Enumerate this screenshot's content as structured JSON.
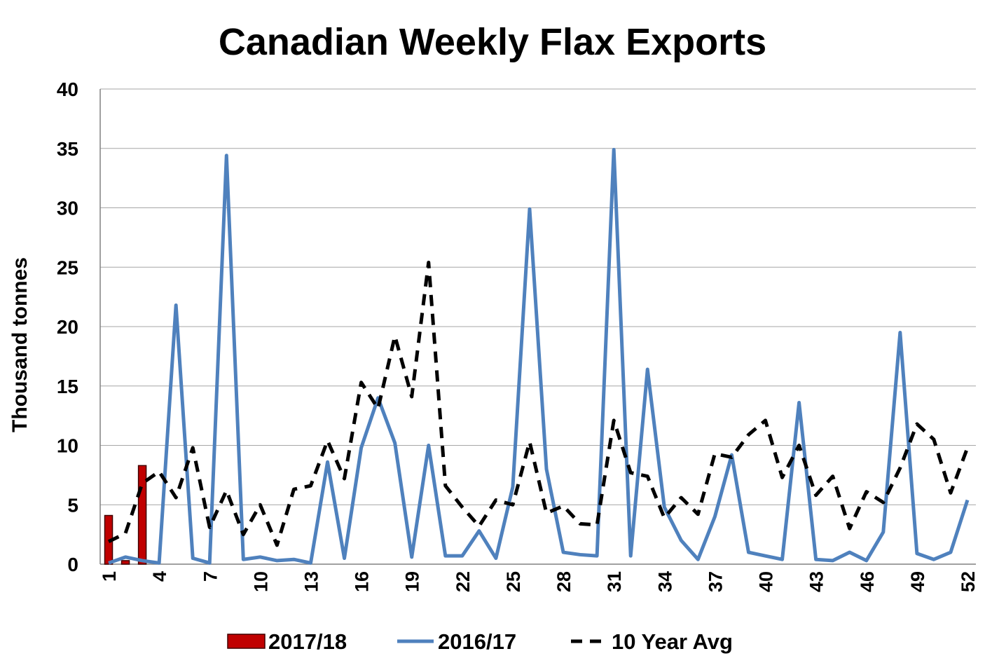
{
  "chart_data": {
    "type": "line",
    "title": "Canadian Weekly Flax Exports",
    "y_label": "Thousand tonnes",
    "categories": [
      "1",
      null,
      null,
      "4",
      null,
      null,
      "7",
      null,
      null,
      "10",
      null,
      null,
      "13",
      null,
      null,
      "16",
      null,
      null,
      "19",
      null,
      null,
      "22",
      null,
      null,
      "25",
      null,
      null,
      "28",
      null,
      null,
      "31",
      null,
      null,
      "34",
      null,
      null,
      "37",
      null,
      null,
      "40",
      null,
      null,
      "43",
      null,
      null,
      "46",
      null,
      null,
      "49",
      null,
      null,
      "52"
    ],
    "series": [
      {
        "name": "2017/18",
        "type": "bar",
        "color": "#c00000",
        "values": [
          4.1,
          0.3,
          8.3,
          null,
          null,
          null,
          null,
          null,
          null,
          null,
          null,
          null,
          null,
          null,
          null,
          null,
          null,
          null,
          null,
          null,
          null,
          null,
          null,
          null,
          null,
          null,
          null,
          null,
          null,
          null,
          null,
          null,
          null,
          null,
          null,
          null,
          null,
          null,
          null,
          null,
          null,
          null,
          null,
          null,
          null,
          null,
          null,
          null,
          null,
          null,
          null,
          null
        ]
      },
      {
        "name": "2016/17",
        "type": "line",
        "color": "#4f81bd",
        "values": [
          0.1,
          0.6,
          0.3,
          0.1,
          21.8,
          0.5,
          0.1,
          34.4,
          0.4,
          0.6,
          0.3,
          0.4,
          0.1,
          8.6,
          0.5,
          9.8,
          14.0,
          10.2,
          0.6,
          10.0,
          0.7,
          0.7,
          2.8,
          0.5,
          6.5,
          29.9,
          8.0,
          1.0,
          0.8,
          0.7,
          34.9,
          0.7,
          16.4,
          4.8,
          2.0,
          0.4,
          4.0,
          9.2,
          1.0,
          0.7,
          0.4,
          13.6,
          0.4,
          0.3,
          1.0,
          0.3,
          2.7,
          19.5,
          0.9,
          0.4,
          1.0,
          5.4
        ]
      },
      {
        "name": "10 Year Avg",
        "type": "dashed",
        "color": "#000000",
        "values": [
          1.9,
          2.6,
          6.8,
          7.8,
          5.6,
          9.8,
          3.1,
          6.2,
          2.5,
          5.0,
          1.6,
          6.3,
          6.6,
          10.4,
          7.2,
          15.3,
          13.1,
          19.2,
          14.1,
          25.4,
          6.6,
          4.8,
          3.2,
          5.4,
          5.0,
          10.3,
          4.3,
          4.9,
          3.4,
          3.3,
          12.1,
          7.7,
          7.4,
          3.9,
          5.6,
          4.2,
          9.3,
          9.0,
          10.9,
          12.1,
          7.3,
          10.0,
          5.8,
          7.4,
          3.0,
          6.1,
          5.2,
          8.1,
          11.8,
          10.5,
          6.0,
          9.8
        ]
      }
    ],
    "ylim": [
      0,
      40
    ],
    "yticks": [
      0,
      5,
      10,
      15,
      20,
      25,
      30,
      35,
      40
    ],
    "grid": true,
    "legend": "bottom"
  }
}
